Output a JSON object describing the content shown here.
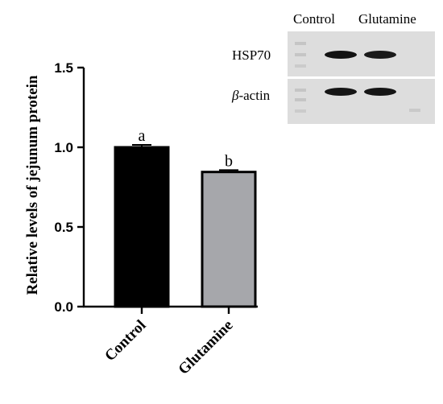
{
  "chart_data": {
    "type": "bar",
    "categories": [
      "Control",
      "Glutamine"
    ],
    "values": [
      1.0,
      0.845
    ],
    "errors": [
      0.015,
      0.012
    ],
    "significance": [
      "a",
      "b"
    ],
    "colors": [
      "#000000",
      "#a6a7ab"
    ],
    "title": "",
    "xlabel": "",
    "ylabel": "Relative levels of jejunum protein",
    "ylim": [
      0,
      1.5
    ],
    "yticks": [
      "0.0",
      "0.5",
      "1.0",
      "1.5"
    ],
    "grid": false
  },
  "blot": {
    "lane_labels": [
      "Control",
      "Glutamine"
    ],
    "row_labels": [
      "HSP70",
      "-actin"
    ],
    "greek_prefix": "β"
  }
}
